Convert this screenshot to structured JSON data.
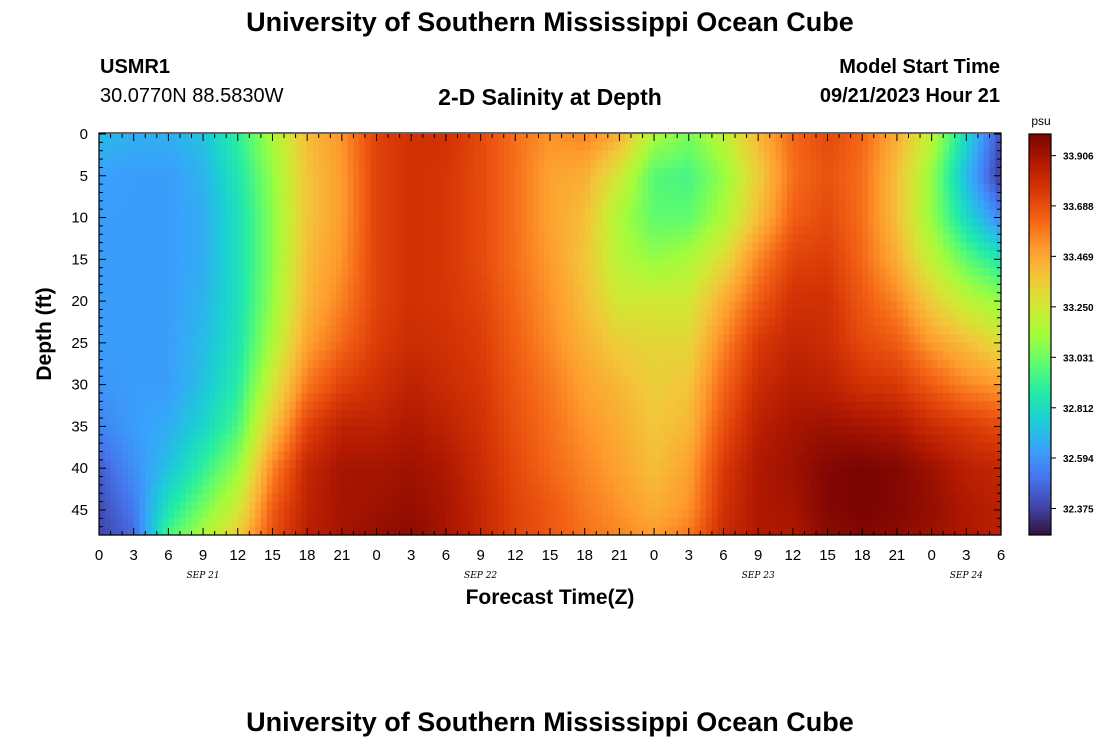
{
  "header": {
    "title": "University of Southern Mississippi Ocean Cube",
    "station_id": "USMR1",
    "station_coords": "30.0770N  88.5830W",
    "model_label": "Model Start Time",
    "model_time": "09/21/2023 Hour 21"
  },
  "footer": {
    "title": "University of Southern Mississippi Ocean Cube"
  },
  "chart_data": {
    "type": "heatmap",
    "title": "2-D Salinity at Depth",
    "xlabel": "Forecast Time(Z)",
    "ylabel": "Depth (ft)",
    "x_hours_range": [
      0,
      78
    ],
    "x_tick_labels": [
      "0",
      "3",
      "6",
      "9",
      "12",
      "15",
      "18",
      "21",
      "0",
      "3",
      "6",
      "9",
      "12",
      "15",
      "18",
      "21",
      "0",
      "3",
      "6",
      "9",
      "12",
      "15",
      "18",
      "21",
      "0",
      "3",
      "6"
    ],
    "date_labels": [
      {
        "label": "SEP 21",
        "at_tick": 3
      },
      {
        "label": "SEP 22",
        "at_tick": 11
      },
      {
        "label": "SEP 23",
        "at_tick": 19
      },
      {
        "label": "SEP 24",
        "at_tick": 25
      }
    ],
    "y_range_ft": [
      0,
      48
    ],
    "y_ticks": [
      0,
      5,
      10,
      15,
      20,
      25,
      30,
      35,
      40,
      45
    ],
    "colorbar": {
      "unit": "psu",
      "min": 32.26,
      "max": 34.0,
      "tick_labels": [
        "33.906",
        "33.688",
        "33.469",
        "33.250",
        "33.031",
        "32.812",
        "32.594",
        "32.375"
      ],
      "tick_values": [
        33.906,
        33.688,
        33.469,
        33.25,
        33.031,
        32.812,
        32.594,
        32.375
      ],
      "colors": [
        "#30123b",
        "#4145ab",
        "#4675ed",
        "#39a2fc",
        "#1bcfd4",
        "#24eca6",
        "#61fc6c",
        "#a4fc3b",
        "#d1e834",
        "#f3c63a",
        "#fe9b2d",
        "#f36315",
        "#d93806",
        "#b11901",
        "#7a0402"
      ]
    },
    "grid": false,
    "depth_levels_ft": [
      0,
      5,
      10,
      15,
      20,
      25,
      30,
      35,
      40,
      45,
      48
    ],
    "profile_hours": [
      0,
      3,
      6,
      9,
      12,
      15,
      18,
      21,
      24,
      27,
      30,
      33,
      36,
      39,
      42,
      45,
      48,
      51,
      54,
      57,
      60,
      63,
      66,
      69,
      72,
      75,
      78
    ],
    "values": [
      [
        32.7,
        32.63,
        32.62,
        32.62,
        32.62,
        32.62,
        32.6,
        32.55,
        32.45,
        32.4,
        32.38
      ],
      [
        32.67,
        32.62,
        32.62,
        32.62,
        32.62,
        32.62,
        32.62,
        32.62,
        32.58,
        32.52,
        32.48
      ],
      [
        32.67,
        32.62,
        32.62,
        32.62,
        32.62,
        32.62,
        32.62,
        32.66,
        32.72,
        32.85,
        32.95
      ],
      [
        32.72,
        32.68,
        32.66,
        32.66,
        32.68,
        32.7,
        32.72,
        32.78,
        32.9,
        33.05,
        33.15
      ],
      [
        32.9,
        32.85,
        32.82,
        32.82,
        32.82,
        32.84,
        32.88,
        32.96,
        33.1,
        33.25,
        33.35
      ],
      [
        33.15,
        33.1,
        33.08,
        33.08,
        33.1,
        33.15,
        33.25,
        33.38,
        33.55,
        33.65,
        33.68
      ],
      [
        33.4,
        33.38,
        33.38,
        33.4,
        33.42,
        33.48,
        33.58,
        33.72,
        33.82,
        33.84,
        33.85
      ],
      [
        33.52,
        33.5,
        33.5,
        33.52,
        33.56,
        33.62,
        33.72,
        33.84,
        33.9,
        33.9,
        33.9
      ],
      [
        33.72,
        33.72,
        33.72,
        33.72,
        33.72,
        33.74,
        33.78,
        33.84,
        33.9,
        33.92,
        33.94
      ],
      [
        33.78,
        33.78,
        33.78,
        33.78,
        33.78,
        33.8,
        33.84,
        33.88,
        33.92,
        33.94,
        33.96
      ],
      [
        33.78,
        33.76,
        33.76,
        33.76,
        33.76,
        33.78,
        33.8,
        33.84,
        33.88,
        33.9,
        33.9
      ],
      [
        33.7,
        33.7,
        33.7,
        33.7,
        33.72,
        33.74,
        33.76,
        33.78,
        33.8,
        33.82,
        33.82
      ],
      [
        33.6,
        33.6,
        33.6,
        33.6,
        33.62,
        33.64,
        33.66,
        33.68,
        33.7,
        33.72,
        33.72
      ],
      [
        33.52,
        33.48,
        33.48,
        33.5,
        33.52,
        33.54,
        33.58,
        33.6,
        33.62,
        33.66,
        33.66
      ],
      [
        33.55,
        33.45,
        33.4,
        33.38,
        33.4,
        33.44,
        33.48,
        33.52,
        33.55,
        33.58,
        33.6
      ],
      [
        33.45,
        33.25,
        33.15,
        33.18,
        33.25,
        33.35,
        33.42,
        33.45,
        33.48,
        33.52,
        33.55
      ],
      [
        33.15,
        32.98,
        33.0,
        33.1,
        33.25,
        33.32,
        33.35,
        33.38,
        33.4,
        33.45,
        33.5
      ],
      [
        33.05,
        32.95,
        33.0,
        33.15,
        33.25,
        33.32,
        33.38,
        33.42,
        33.48,
        33.52,
        33.58
      ],
      [
        33.2,
        33.1,
        33.15,
        33.3,
        33.45,
        33.55,
        33.62,
        33.68,
        33.75,
        33.78,
        33.8
      ],
      [
        33.42,
        33.35,
        33.4,
        33.55,
        33.65,
        33.75,
        33.8,
        33.85,
        33.88,
        33.88,
        33.88
      ],
      [
        33.62,
        33.6,
        33.64,
        33.72,
        33.78,
        33.82,
        33.86,
        33.9,
        33.92,
        33.9,
        33.88
      ],
      [
        33.7,
        33.68,
        33.7,
        33.74,
        33.78,
        33.8,
        33.84,
        33.92,
        33.98,
        33.98,
        33.96
      ],
      [
        33.62,
        33.6,
        33.6,
        33.62,
        33.66,
        33.7,
        33.78,
        33.9,
        34.0,
        34.0,
        33.98
      ],
      [
        33.45,
        33.4,
        33.4,
        33.45,
        33.55,
        33.65,
        33.75,
        33.88,
        33.98,
        33.98,
        33.96
      ],
      [
        33.2,
        33.1,
        33.1,
        33.2,
        33.35,
        33.5,
        33.65,
        33.8,
        33.92,
        33.94,
        33.92
      ],
      [
        32.8,
        32.7,
        32.8,
        33.0,
        33.2,
        33.4,
        33.55,
        33.75,
        33.85,
        33.88,
        33.88
      ],
      [
        32.4,
        32.35,
        32.55,
        32.85,
        33.1,
        33.3,
        33.5,
        33.7,
        33.82,
        33.85,
        33.85
      ]
    ]
  }
}
